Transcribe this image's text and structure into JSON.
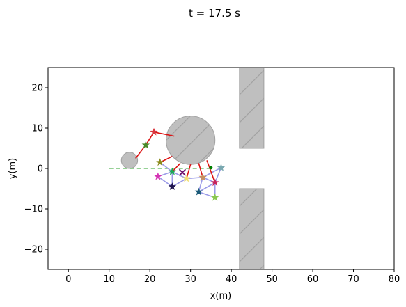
{
  "chart_data": {
    "type": "scatter",
    "title": "t = 17.5 s",
    "xlabel": "x(m)",
    "ylabel": "y(m)",
    "xlim": [
      -5,
      80
    ],
    "ylim": [
      -25,
      25
    ],
    "xticks": [
      0,
      10,
      20,
      30,
      40,
      50,
      60,
      70,
      80
    ],
    "yticks": [
      -20,
      -10,
      0,
      10,
      20
    ],
    "obstacles": {
      "color": "#bfbfbf",
      "edge": "#a0a0a0",
      "circles": [
        {
          "name": "large-circle-obstacle",
          "x": 30,
          "y": 7,
          "r": 6
        },
        {
          "name": "small-circle-obstacle",
          "x": 15,
          "y": 2,
          "r": 2
        }
      ],
      "rectangles": [
        {
          "name": "upper-wall-obstacle",
          "x0": 42,
          "x1": 48,
          "y0": 5,
          "y1": 25
        },
        {
          "name": "lower-wall-obstacle",
          "x0": 42,
          "x1": 48,
          "y0": -25,
          "y1": -5
        }
      ]
    },
    "reference_path": {
      "color": "#5cb85c",
      "points": [
        [
          10,
          0
        ],
        [
          35,
          0
        ]
      ]
    },
    "target": {
      "x": 35,
      "y": 0.2,
      "color": "#008000"
    },
    "leader": {
      "x": 28,
      "y": -1,
      "color": "#6a0d6a",
      "marker": "x"
    },
    "agents": [
      {
        "x": 21,
        "y": 9,
        "color": "#d9363e"
      },
      {
        "x": 19,
        "y": 5.8,
        "color": "#4a8a28"
      },
      {
        "x": 22.5,
        "y": 1.5,
        "color": "#8a8a1a"
      },
      {
        "x": 22,
        "y": -2,
        "color": "#d633b4"
      },
      {
        "x": 25.5,
        "y": -0.8,
        "color": "#1aaa55"
      },
      {
        "x": 25.5,
        "y": -4.5,
        "color": "#1e1450"
      },
      {
        "x": 29,
        "y": -2.5,
        "color": "#f2e070"
      },
      {
        "x": 33,
        "y": -2.2,
        "color": "#c89060"
      },
      {
        "x": 32,
        "y": -5.8,
        "color": "#1a5a78"
      },
      {
        "x": 36,
        "y": -3.5,
        "color": "#c8245a"
      },
      {
        "x": 37.5,
        "y": 0.2,
        "color": "#7aa8b0"
      },
      {
        "x": 36,
        "y": -7.2,
        "color": "#8ac850"
      }
    ],
    "connection_color": "#9a9ae8",
    "connections": [
      [
        3,
        4
      ],
      [
        3,
        5
      ],
      [
        4,
        5
      ],
      [
        4,
        6
      ],
      [
        5,
        6
      ],
      [
        6,
        7
      ],
      [
        7,
        8
      ],
      [
        7,
        9
      ],
      [
        8,
        9
      ],
      [
        9,
        10
      ],
      [
        9,
        11
      ],
      [
        8,
        11
      ],
      [
        4,
        2
      ],
      [
        7,
        10
      ]
    ],
    "tether_color": "#dd1111",
    "tethers": [
      {
        "from": [
          21,
          9
        ],
        "to": [
          26,
          8
        ]
      },
      {
        "from": [
          21,
          9
        ],
        "to": [
          19,
          5.8
        ]
      },
      {
        "from": [
          19,
          5.8
        ],
        "to": [
          16.5,
          2.5
        ]
      },
      {
        "from": [
          22.5,
          1.5
        ],
        "to": [
          25.5,
          3
        ]
      },
      {
        "from": [
          25.5,
          -0.8
        ],
        "to": [
          27.5,
          1.3
        ]
      },
      {
        "from": [
          29,
          -2.5
        ],
        "to": [
          30,
          1
        ]
      },
      {
        "from": [
          33,
          -2.2
        ],
        "to": [
          32,
          1.3
        ]
      },
      {
        "from": [
          36,
          -3.5
        ],
        "to": [
          34,
          2
        ]
      }
    ]
  }
}
